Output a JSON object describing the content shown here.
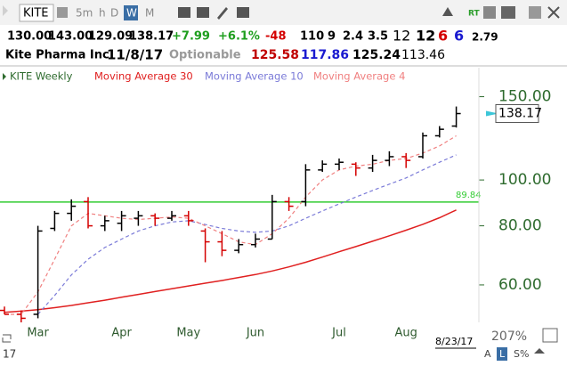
{
  "toolbar": {
    "symbol": "KITE",
    "periods": [
      "5m",
      "h",
      "D",
      "W",
      "M"
    ],
    "rt": "RT"
  },
  "quote": {
    "open": "130.00",
    "high": "143.00",
    "low": "129.09",
    "last": "138.17",
    "change": "+7.99",
    "change_pct": "+6.1%",
    "v1": "-48",
    "v2": "110",
    "v3": "9",
    "v4": "2.4",
    "v5": "3.5",
    "v6": "12",
    "v7": "12",
    "v8": "6",
    "v9": "6",
    "v10": "2.79"
  },
  "info": {
    "name": "Kite Pharma Inc",
    "date": "11/8/17",
    "optionable": "Optionable",
    "p1": "125.58",
    "p2": "117.86",
    "p3": "125.24",
    "p4": "113.46"
  },
  "footer": {
    "year": "17",
    "date": "8/23/17",
    "zoom": "207%",
    "buttons": [
      "A",
      "L",
      "S%"
    ]
  },
  "chart_data": {
    "type": "ohlc",
    "log_scale": true,
    "categories": [
      null,
      null,
      "Mar",
      null,
      null,
      null,
      null,
      "Apr",
      null,
      null,
      null,
      "May",
      null,
      null,
      null,
      "Jun",
      null,
      null,
      null,
      null,
      "Jul",
      null,
      null,
      null,
      "Aug",
      null,
      null,
      null
    ],
    "series": [
      {
        "name": "KITE Weekly",
        "up_color": "#000000",
        "down_color": "#d40000",
        "open": [
          53,
          52,
          52,
          79,
          85,
          90,
          80,
          81,
          83,
          84,
          83,
          84,
          78,
          74,
          71,
          73,
          75,
          90,
          90,
          105,
          108,
          108,
          106,
          110,
          112,
          112,
          124,
          130
        ],
        "high": [
          54,
          53,
          80,
          86,
          91,
          92,
          84,
          86,
          86,
          85,
          86,
          86,
          79,
          78,
          75,
          77,
          93,
          92,
          108,
          110,
          111,
          109,
          113,
          115,
          114,
          126,
          130,
          143
        ],
        "low": [
          52,
          50,
          51,
          78,
          82,
          79,
          78,
          78,
          80,
          80,
          82,
          80,
          67,
          69,
          70,
          72,
          75,
          86,
          88,
          104,
          105,
          102,
          104,
          107,
          106,
          111,
          123,
          129.09
        ],
        "close": [
          52,
          51,
          78,
          85,
          88,
          80,
          82,
          84,
          84,
          83,
          84,
          82,
          74,
          71,
          73,
          75,
          90,
          88,
          105,
          108,
          109,
          106,
          110,
          112,
          110,
          124,
          128,
          138.17
        ]
      },
      {
        "name": "Moving Average 30",
        "color": "#e02020",
        "dash": false,
        "values": [
          52.5,
          52.8,
          53.2,
          53.7,
          54.3,
          55,
          55.7,
          56.5,
          57.3,
          58.1,
          58.9,
          59.7,
          60.5,
          61.3,
          62.2,
          63.1,
          64.2,
          65.5,
          67,
          68.7,
          70.5,
          72.3,
          74.2,
          76.2,
          78.3,
          80.6,
          83.2,
          86.4
        ]
      },
      {
        "name": "Moving Average 10",
        "color": "#7b7bd8",
        "dash": true,
        "values": [
          null,
          null,
          52,
          57,
          63,
          68,
          72,
          75,
          78,
          80,
          81.5,
          82,
          80.5,
          79,
          78,
          77.5,
          78,
          80,
          83,
          86,
          89,
          92,
          95,
          98,
          101,
          105,
          109,
          113
        ]
      },
      {
        "name": "Moving Average 4",
        "color": "#f08080",
        "dash": true,
        "values": [
          52,
          52,
          58,
          68,
          80,
          85,
          84,
          83,
          82.5,
          83,
          83.5,
          83,
          80,
          77,
          74,
          73,
          77,
          83,
          92,
          100,
          105,
          107,
          108,
          110,
          111,
          114,
          118,
          124
        ]
      }
    ],
    "ylim": [
      50,
      172
    ],
    "yticks": [
      {
        "value": 150,
        "label": "150.00"
      },
      {
        "value": 100,
        "label": "100.00"
      },
      {
        "value": 80,
        "label": "80.00"
      },
      {
        "value": 60,
        "label": "60.00"
      }
    ],
    "reference_lines": [
      {
        "value": 89.84,
        "color": "#33cc33"
      }
    ],
    "axis_color": "#2e6b2e"
  }
}
